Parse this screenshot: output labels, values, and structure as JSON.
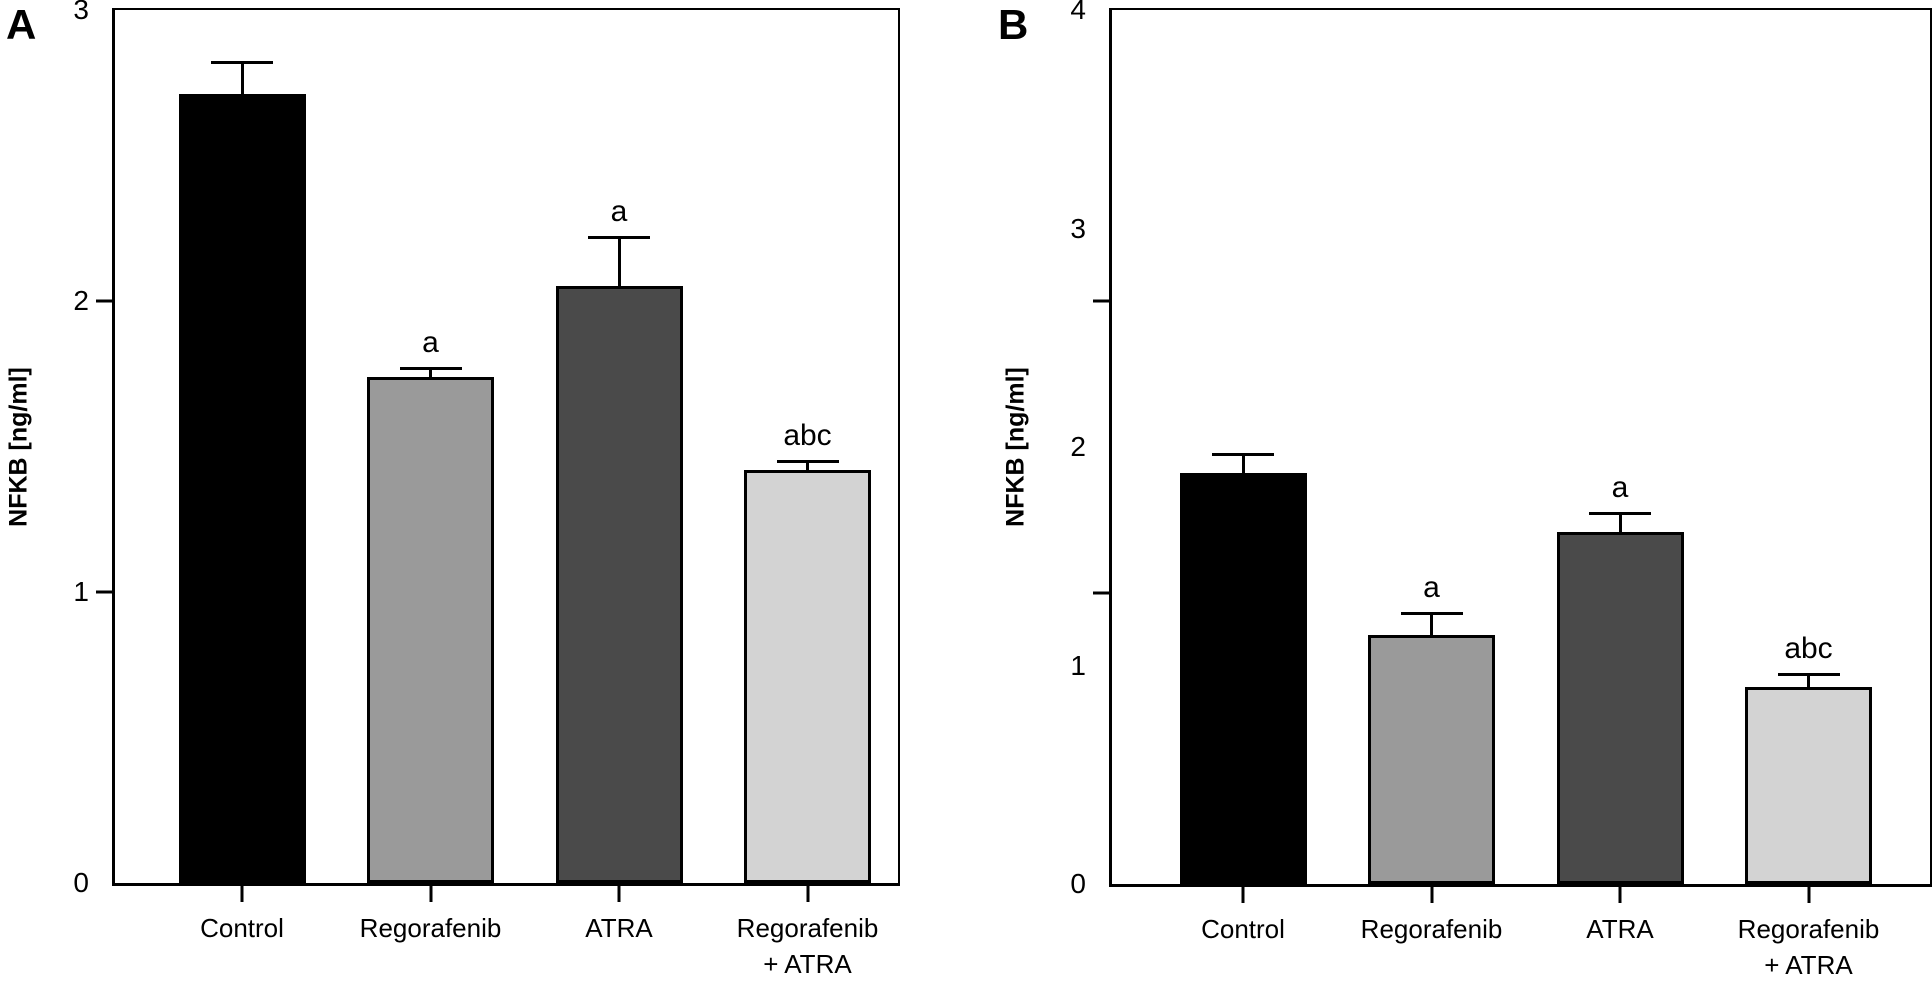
{
  "chart_data": [
    {
      "type": "bar",
      "panel_label": "A",
      "ylabel": "NFKB [ng/ml]",
      "ylim": [
        0,
        3
      ],
      "ytick_labels": [
        0,
        1,
        2,
        3
      ],
      "axis_tick_marks_at": [
        1,
        2
      ],
      "grid": false,
      "legend": "none",
      "categories": [
        "Control",
        "Regorafenib",
        "ATRA",
        "Regorafenib + ATRA"
      ],
      "categories_display": [
        [
          "Control"
        ],
        [
          "Regorafenib"
        ],
        [
          "ATRA"
        ],
        [
          "Regorafenib",
          "+ ATRA"
        ]
      ],
      "values": [
        2.71,
        1.74,
        2.05,
        1.42
      ],
      "errors": [
        0.11,
        0.03,
        0.17,
        0.03
      ],
      "sig_labels": [
        "",
        "a",
        "a",
        "abc"
      ],
      "bar_colors": [
        "#000000",
        "#9a9a9a",
        "#4a4a4a",
        "#d3d3d3"
      ]
    },
    {
      "type": "bar",
      "panel_label": "B",
      "ylabel": "NFKB [ng/ml]",
      "ylim": [
        0,
        4
      ],
      "ytick_labels": [
        0,
        1,
        2,
        3,
        4
      ],
      "axis_tick_marks_at": [
        1.333,
        2.667
      ],
      "grid": false,
      "legend": "none",
      "categories": [
        "Control",
        "Regorafenib",
        "ATRA",
        "Regorafenib + ATRA"
      ],
      "categories_display": [
        [
          "Control"
        ],
        [
          "Regorafenib"
        ],
        [
          "ATRA"
        ],
        [
          "Regorafenib",
          "+ ATRA"
        ]
      ],
      "values": [
        1.88,
        1.14,
        1.61,
        0.9
      ],
      "errors": [
        0.09,
        0.1,
        0.09,
        0.06
      ],
      "sig_labels": [
        "",
        "a",
        "a",
        "abc"
      ],
      "bar_colors": [
        "#000000",
        "#9a9a9a",
        "#4a4a4a",
        "#d3d3d3"
      ]
    }
  ]
}
